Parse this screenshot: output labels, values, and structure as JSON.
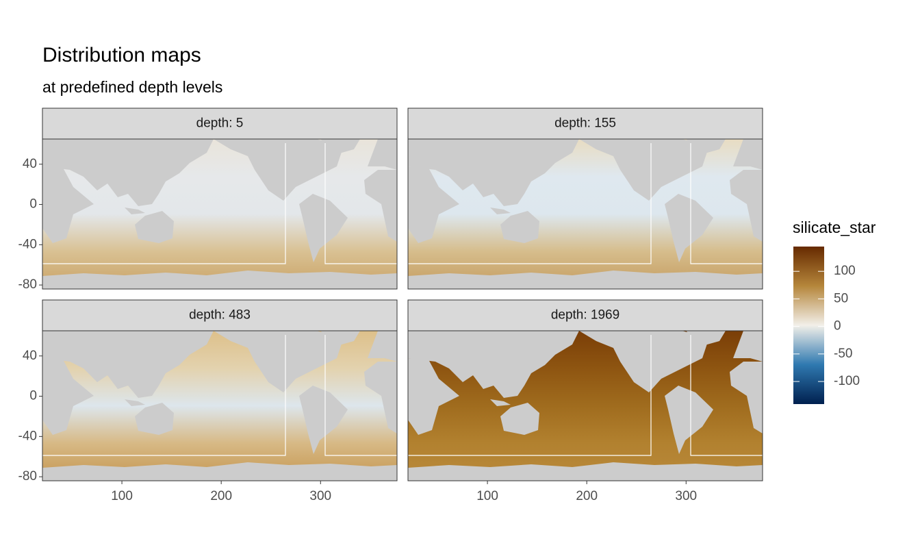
{
  "chart_data": {
    "type": "raster",
    "title": "Distribution maps",
    "subtitle": "at predefined depth levels",
    "facets": [
      {
        "label": "depth: 5",
        "colors": [
          "#e9e4da",
          "#e6e8ea",
          "#e3e7ea",
          "#d9c193",
          "#c9a265"
        ]
      },
      {
        "label": "depth: 155",
        "colors": [
          "#e8dcc2",
          "#dfe8ef",
          "#dde7ee",
          "#d6bd8c",
          "#c49b5e"
        ]
      },
      {
        "label": "depth: 483",
        "colors": [
          "#ddc08a",
          "#e3d2ae",
          "#dde6ec",
          "#d7b985",
          "#c49650"
        ]
      },
      {
        "label": "depth: 1969",
        "colors": [
          "#7a3e07",
          "#8e5511",
          "#a06c1e",
          "#b2812f",
          "#b98a3c"
        ]
      }
    ],
    "xlim": [
      20,
      377
    ],
    "xticks": [
      100,
      200,
      300
    ],
    "ylim": [
      -84,
      65
    ],
    "yticks": [
      40,
      0,
      -40,
      -80
    ],
    "legend": {
      "title": "silicate_star",
      "limits": [
        -141,
        145
      ],
      "ticks": [
        100,
        50,
        0,
        -50,
        -100
      ],
      "colors": [
        "#00204f",
        "#2f79b0",
        "#f2efe9",
        "#b5863b",
        "#662a00"
      ]
    }
  }
}
